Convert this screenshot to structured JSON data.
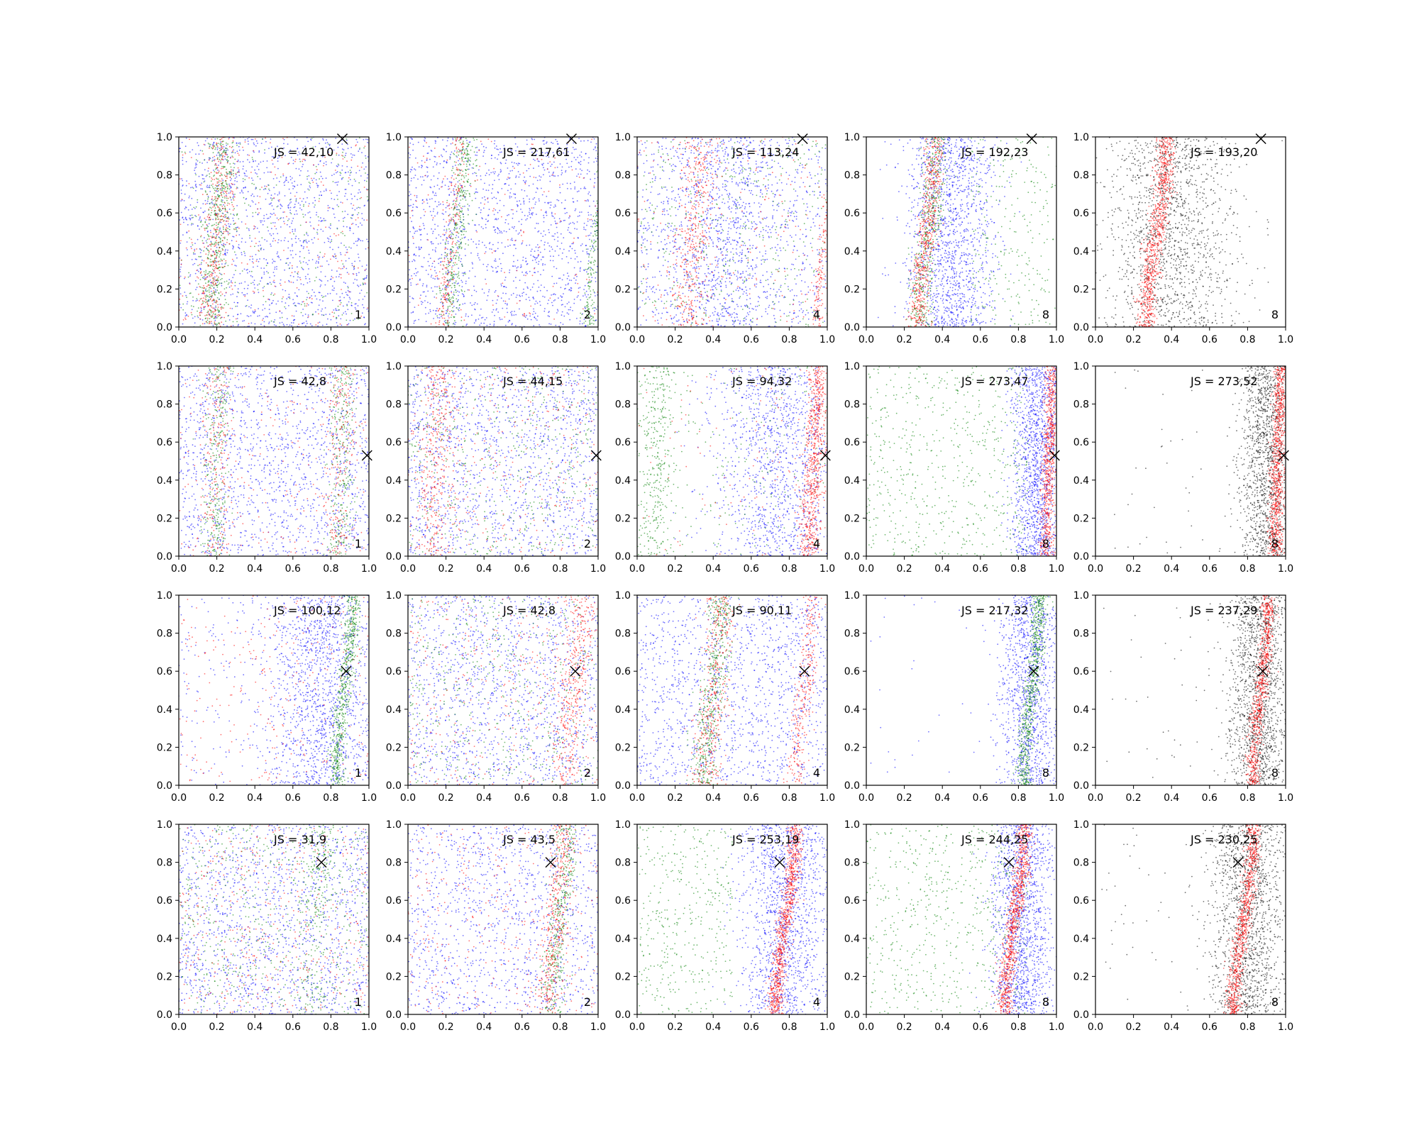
{
  "figure": {
    "rows": 4,
    "cols": 5,
    "xlim": [
      0,
      1
    ],
    "ylim": [
      0,
      1
    ],
    "ticks": [
      0.0,
      0.2,
      0.4,
      0.6,
      0.8,
      1.0
    ],
    "tick_labels": [
      "0.0",
      "0.2",
      "0.4",
      "0.6",
      "0.8",
      "1.0"
    ],
    "colors": {
      "blue": "#0000ff",
      "green": "#008000",
      "red": "#ff0000",
      "black": "#000000"
    }
  },
  "chart_data": [
    {
      "type": "scatter",
      "row": 0,
      "col": 0,
      "js_label": "JS = 42,10",
      "corner_label": "1",
      "marker": [
        0.86,
        0.99
      ],
      "xlim": [
        0,
        1
      ],
      "ylim": [
        0,
        1
      ],
      "series": [
        {
          "color": "#0000ff",
          "density": "diffuse across full panel"
        },
        {
          "color": "#008000",
          "density": "band near x≈0.2, sparse near x≈1.0"
        },
        {
          "color": "#ff0000",
          "density": "band near x≈0.2"
        }
      ]
    },
    {
      "type": "scatter",
      "row": 0,
      "col": 1,
      "js_label": "JS = 217,61",
      "corner_label": "2",
      "marker": [
        0.86,
        0.99
      ],
      "xlim": [
        0,
        1
      ],
      "ylim": [
        0,
        1
      ],
      "series": [
        {
          "color": "#0000ff",
          "density": "diffuse"
        },
        {
          "color": "#008000",
          "density": "band near x≈0.25 and edge x≈1.0"
        },
        {
          "color": "#ff0000",
          "density": "sparse band near x≈0.22"
        }
      ]
    },
    {
      "type": "scatter",
      "row": 0,
      "col": 2,
      "js_label": "JS = 113,24",
      "corner_label": "4",
      "marker": [
        0.87,
        0.99
      ],
      "xlim": [
        0,
        1
      ],
      "ylim": [
        0,
        1
      ],
      "series": [
        {
          "color": "#0000ff",
          "density": "diffuse, denser x≈0.3–0.6"
        },
        {
          "color": "#008000",
          "density": "diffuse"
        },
        {
          "color": "#ff0000",
          "density": "band near x≈0.3 and edge x≈1.0"
        }
      ]
    },
    {
      "type": "scatter",
      "row": 0,
      "col": 3,
      "js_label": "JS = 192,23",
      "corner_label": "8",
      "marker": [
        0.87,
        0.99
      ],
      "xlim": [
        0,
        1
      ],
      "ylim": [
        0,
        1
      ],
      "series": [
        {
          "color": "#0000ff",
          "density": "concentrated x≈0.3–0.6"
        },
        {
          "color": "#008000",
          "density": "band near x≈0.32 plus sparse right side"
        },
        {
          "color": "#ff0000",
          "density": "dense band near x≈0.32"
        }
      ]
    },
    {
      "type": "scatter",
      "row": 0,
      "col": 4,
      "js_label": "JS = 193,20",
      "corner_label": "8",
      "marker": [
        0.87,
        0.99
      ],
      "xlim": [
        0,
        1
      ],
      "ylim": [
        0,
        1
      ],
      "series": [
        {
          "color": "#000000",
          "density": "diffuse x≈0–0.7"
        },
        {
          "color": "#ff0000",
          "density": "dense band near x≈0.32"
        }
      ]
    },
    {
      "type": "scatter",
      "row": 1,
      "col": 0,
      "js_label": "JS = 42,8",
      "corner_label": "1",
      "marker": [
        0.99,
        0.53
      ],
      "xlim": [
        0,
        1
      ],
      "ylim": [
        0,
        1
      ],
      "series": [
        {
          "color": "#0000ff",
          "density": "diffuse"
        },
        {
          "color": "#008000",
          "density": "bands near x≈0.2 and x≈0.85"
        },
        {
          "color": "#ff0000",
          "density": "bands near x≈0.2 and x≈0.85"
        }
      ]
    },
    {
      "type": "scatter",
      "row": 1,
      "col": 1,
      "js_label": "JS = 44,15",
      "corner_label": "2",
      "marker": [
        0.99,
        0.53
      ],
      "xlim": [
        0,
        1
      ],
      "ylim": [
        0,
        1
      ],
      "series": [
        {
          "color": "#0000ff",
          "density": "diffuse"
        },
        {
          "color": "#008000",
          "density": "diffuse"
        },
        {
          "color": "#ff0000",
          "density": "band near x≈0.15"
        }
      ]
    },
    {
      "type": "scatter",
      "row": 1,
      "col": 2,
      "js_label": "JS = 94,32",
      "corner_label": "4",
      "marker": [
        0.99,
        0.53
      ],
      "xlim": [
        0,
        1
      ],
      "ylim": [
        0,
        1
      ],
      "series": [
        {
          "color": "#0000ff",
          "density": "increasing toward x≈0.9"
        },
        {
          "color": "#008000",
          "density": "band near x≈0.1"
        },
        {
          "color": "#ff0000",
          "density": "dense band near x≈0.93"
        }
      ]
    },
    {
      "type": "scatter",
      "row": 1,
      "col": 3,
      "js_label": "JS = 273,47",
      "corner_label": "8",
      "marker": [
        0.99,
        0.53
      ],
      "xlim": [
        0,
        1
      ],
      "ylim": [
        0,
        1
      ],
      "series": [
        {
          "color": "#0000ff",
          "density": "concentrated x≈0.75–1.0"
        },
        {
          "color": "#008000",
          "density": "diffuse x≈0–0.8"
        },
        {
          "color": "#ff0000",
          "density": "dense band near x≈0.97"
        }
      ]
    },
    {
      "type": "scatter",
      "row": 1,
      "col": 4,
      "js_label": "JS = 273,52",
      "corner_label": "8",
      "marker": [
        0.99,
        0.53
      ],
      "xlim": [
        0,
        1
      ],
      "ylim": [
        0,
        1
      ],
      "series": [
        {
          "color": "#000000",
          "density": "concentrated x≈0.75–1.0, few scattered left"
        },
        {
          "color": "#ff0000",
          "density": "dense band near x≈0.97"
        }
      ]
    },
    {
      "type": "scatter",
      "row": 2,
      "col": 0,
      "js_label": "JS = 100,12",
      "corner_label": "1",
      "marker": [
        0.88,
        0.6
      ],
      "xlim": [
        0,
        1
      ],
      "ylim": [
        0,
        1
      ],
      "series": [
        {
          "color": "#0000ff",
          "density": "concentrated x≈0.5–1.0"
        },
        {
          "color": "#008000",
          "density": "dense band near x≈0.87"
        },
        {
          "color": "#ff0000",
          "density": "diffuse"
        }
      ]
    },
    {
      "type": "scatter",
      "row": 2,
      "col": 1,
      "js_label": "JS = 42,8",
      "corner_label": "2",
      "marker": [
        0.88,
        0.6
      ],
      "xlim": [
        0,
        1
      ],
      "ylim": [
        0,
        1
      ],
      "series": [
        {
          "color": "#0000ff",
          "density": "diffuse"
        },
        {
          "color": "#008000",
          "density": "diffuse"
        },
        {
          "color": "#ff0000",
          "density": "band near x≈0.88"
        }
      ]
    },
    {
      "type": "scatter",
      "row": 2,
      "col": 2,
      "js_label": "JS = 90,11",
      "corner_label": "4",
      "marker": [
        0.88,
        0.6
      ],
      "xlim": [
        0,
        1
      ],
      "ylim": [
        0,
        1
      ],
      "series": [
        {
          "color": "#0000ff",
          "density": "diffuse"
        },
        {
          "color": "#008000",
          "density": "band near x≈0.4"
        },
        {
          "color": "#ff0000",
          "density": "bands near x≈0.4 and x≈0.88"
        }
      ]
    },
    {
      "type": "scatter",
      "row": 2,
      "col": 3,
      "js_label": "JS = 217,32",
      "corner_label": "8",
      "marker": [
        0.88,
        0.6
      ],
      "xlim": [
        0,
        1
      ],
      "ylim": [
        0,
        1
      ],
      "series": [
        {
          "color": "#0000ff",
          "density": "concentrated x≈0.7–1.0"
        },
        {
          "color": "#008000",
          "density": "dense band near x≈0.87"
        }
      ]
    },
    {
      "type": "scatter",
      "row": 2,
      "col": 4,
      "js_label": "JS = 237,29",
      "corner_label": "8",
      "marker": [
        0.88,
        0.6
      ],
      "xlim": [
        0,
        1
      ],
      "ylim": [
        0,
        1
      ],
      "series": [
        {
          "color": "#000000",
          "density": "concentrated x≈0.7–1.0, few scattered left"
        },
        {
          "color": "#ff0000",
          "density": "dense band near x≈0.87"
        }
      ]
    },
    {
      "type": "scatter",
      "row": 3,
      "col": 0,
      "js_label": "JS = 31,9",
      "corner_label": "1",
      "marker": [
        0.75,
        0.8
      ],
      "xlim": [
        0,
        1
      ],
      "ylim": [
        0,
        1
      ],
      "series": [
        {
          "color": "#0000ff",
          "density": "diffuse"
        },
        {
          "color": "#008000",
          "density": "diffuse, slight band near x≈0.75"
        },
        {
          "color": "#ff0000",
          "density": "diffuse"
        }
      ]
    },
    {
      "type": "scatter",
      "row": 3,
      "col": 1,
      "js_label": "JS = 43,5",
      "corner_label": "2",
      "marker": [
        0.75,
        0.8
      ],
      "xlim": [
        0,
        1
      ],
      "ylim": [
        0,
        1
      ],
      "series": [
        {
          "color": "#0000ff",
          "density": "diffuse"
        },
        {
          "color": "#008000",
          "density": "band near x≈0.8"
        },
        {
          "color": "#ff0000",
          "density": "band near x≈0.8"
        }
      ]
    },
    {
      "type": "scatter",
      "row": 3,
      "col": 2,
      "js_label": "JS = 253,19",
      "corner_label": "4",
      "marker": [
        0.75,
        0.8
      ],
      "xlim": [
        0,
        1
      ],
      "ylim": [
        0,
        1
      ],
      "series": [
        {
          "color": "#0000ff",
          "density": "concentrated x≈0.5–1.0"
        },
        {
          "color": "#008000",
          "density": "diffuse x≈0–0.4"
        },
        {
          "color": "#ff0000",
          "density": "dense band near x≈0.78"
        }
      ]
    },
    {
      "type": "scatter",
      "row": 3,
      "col": 3,
      "js_label": "JS = 244,25",
      "corner_label": "8",
      "marker": [
        0.75,
        0.8
      ],
      "xlim": [
        0,
        1
      ],
      "ylim": [
        0,
        1
      ],
      "series": [
        {
          "color": "#0000ff",
          "density": "concentrated x≈0.7–1.0"
        },
        {
          "color": "#008000",
          "density": "diffuse x≈0–0.8"
        },
        {
          "color": "#ff0000",
          "density": "dense band near x≈0.78"
        }
      ]
    },
    {
      "type": "scatter",
      "row": 3,
      "col": 4,
      "js_label": "JS = 230,25",
      "corner_label": "8",
      "marker": [
        0.75,
        0.8
      ],
      "xlim": [
        0,
        1
      ],
      "ylim": [
        0,
        1
      ],
      "series": [
        {
          "color": "#000000",
          "density": "concentrated x≈0.6–1.0, few scattered left"
        },
        {
          "color": "#ff0000",
          "density": "dense band near x≈0.78"
        }
      ]
    }
  ]
}
